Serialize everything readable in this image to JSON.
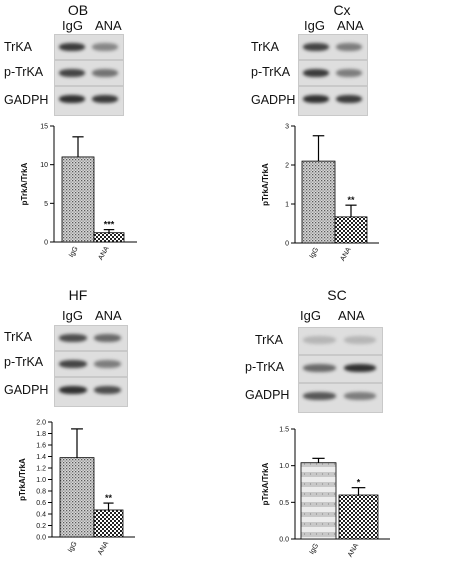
{
  "panels": [
    {
      "title": "OB",
      "lanes": [
        "IgG",
        "ANA"
      ],
      "blot_labels": [
        "TrKA",
        "p-TrKA",
        "GADPH"
      ],
      "band_intensity": [
        [
          0.85,
          0.45
        ],
        [
          0.8,
          0.55
        ],
        [
          0.9,
          0.85
        ]
      ],
      "chart_data": {
        "type": "bar",
        "categories": [
          "IgG",
          "ANA"
        ],
        "values": [
          11.0,
          1.2
        ],
        "errors": [
          2.6,
          0.4
        ],
        "significance": [
          "",
          "***"
        ],
        "title": "",
        "xlabel": "",
        "ylabel": "pTrkA/TrkA",
        "ylim": [
          0,
          15
        ],
        "yticks": [
          0,
          5,
          10,
          15
        ],
        "grid": false,
        "legend": "none",
        "pattern": [
          "dotted",
          "checkered"
        ]
      }
    },
    {
      "title": "Cx",
      "lanes": [
        "IgG",
        "ANA"
      ],
      "blot_labels": [
        "TrKA",
        "p-TrKA",
        "GADPH"
      ],
      "band_intensity": [
        [
          0.8,
          0.5
        ],
        [
          0.85,
          0.5
        ],
        [
          0.9,
          0.85
        ]
      ],
      "chart_data": {
        "type": "bar",
        "categories": [
          "IgG",
          "ANA"
        ],
        "values": [
          2.1,
          0.67
        ],
        "errors": [
          0.65,
          0.3
        ],
        "significance": [
          "",
          "**"
        ],
        "title": "",
        "xlabel": "",
        "ylabel": "pTrkA/TrkA",
        "ylim": [
          0,
          3
        ],
        "yticks": [
          0,
          1,
          2,
          3
        ],
        "grid": false,
        "legend": "none",
        "pattern": [
          "dotted",
          "checkered"
        ]
      }
    },
    {
      "title": "HF",
      "lanes": [
        "IgG",
        "ANA"
      ],
      "blot_labels": [
        "TrKA",
        "p-TrKA",
        "GADPH"
      ],
      "band_intensity": [
        [
          0.75,
          0.6
        ],
        [
          0.8,
          0.5
        ],
        [
          0.9,
          0.75
        ]
      ],
      "chart_data": {
        "type": "bar",
        "categories": [
          "IgG",
          "ANA"
        ],
        "values": [
          1.38,
          0.47
        ],
        "errors": [
          0.5,
          0.12
        ],
        "significance": [
          "",
          "**"
        ],
        "title": "",
        "xlabel": "",
        "ylabel": "pTrkA/TrkA",
        "ylim": [
          0,
          2.0
        ],
        "yticks": [
          0,
          0.2,
          0.4,
          0.6,
          0.8,
          1.0,
          1.2,
          1.4,
          1.6,
          1.8,
          2.0
        ],
        "ytick_labels": [
          "0.0",
          "0.2",
          "0.4",
          "0.6",
          "0.8",
          "1.0",
          "1.2",
          "1.4",
          "1.6",
          "1.8",
          "2.0"
        ],
        "grid": false,
        "legend": "none",
        "pattern": [
          "dotted",
          "checkered"
        ]
      }
    },
    {
      "title": "SC",
      "lanes": [
        "IgG",
        "ANA"
      ],
      "blot_labels": [
        "TrKA",
        "p-TrKA",
        "GADPH"
      ],
      "band_intensity": [
        [
          0.2,
          0.2
        ],
        [
          0.6,
          0.9
        ],
        [
          0.7,
          0.5
        ]
      ],
      "chart_data": {
        "type": "bar",
        "categories": [
          "IgG",
          "ANA"
        ],
        "values": [
          1.04,
          0.6
        ],
        "errors": [
          0.06,
          0.1
        ],
        "significance": [
          "",
          "*"
        ],
        "title": "",
        "xlabel": "",
        "ylabel": "pTrkA/TrkA",
        "ylim": [
          0,
          1.5
        ],
        "yticks": [
          0,
          0.5,
          1.0,
          1.5
        ],
        "ytick_labels": [
          "0.0",
          "0.5",
          "1.0",
          "1.5"
        ],
        "grid": false,
        "legend": "none",
        "pattern": [
          "striped",
          "checkered"
        ]
      }
    }
  ]
}
